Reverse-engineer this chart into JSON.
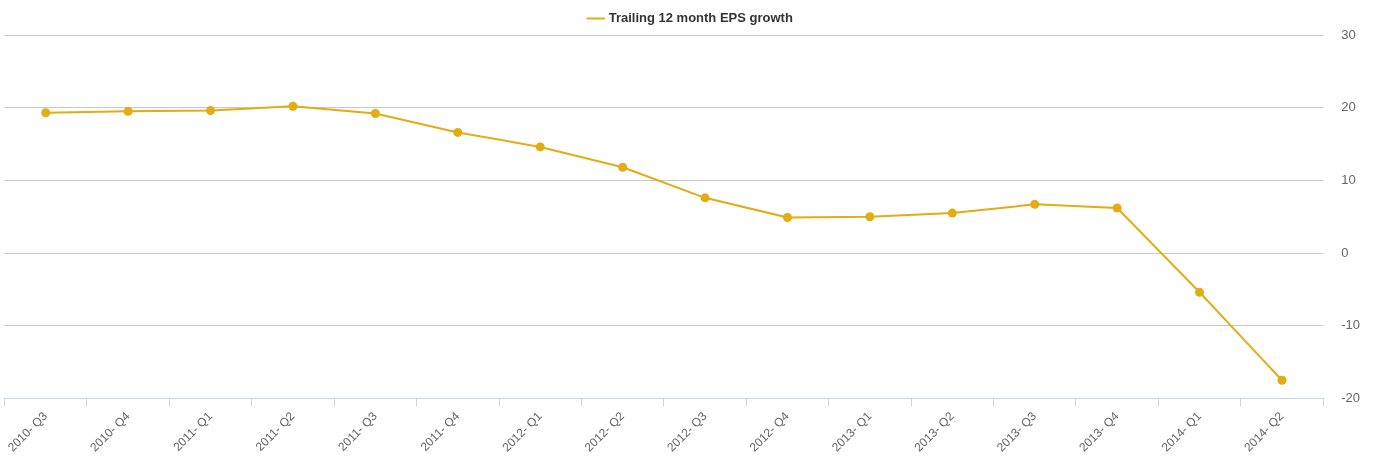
{
  "chart_data": {
    "type": "line",
    "categories": [
      "2010- Q3",
      "2010- Q4",
      "2011- Q1",
      "2011- Q2",
      "2011- Q3",
      "2011- Q4",
      "2012- Q1",
      "2012- Q2",
      "2012- Q3",
      "2012- Q4",
      "2013- Q1",
      "2013- Q2",
      "2013- Q3",
      "2013- Q4",
      "2014- Q1",
      "2014- Q2"
    ],
    "series": [
      {
        "name": "Trailing 12 month EPS growth",
        "color": "#e2ac12",
        "values": [
          19.3,
          19.5,
          19.6,
          20.2,
          19.2,
          16.6,
          14.6,
          11.8,
          7.6,
          4.9,
          5.0,
          5.5,
          6.7,
          6.2,
          -5.4,
          -17.5
        ]
      }
    ],
    "ylim": [
      -20,
      30
    ],
    "yticks": [
      -20,
      -10,
      0,
      10,
      20,
      30
    ],
    "grid": "y",
    "legend": "top",
    "marker": "circle",
    "line_style": "solid"
  }
}
